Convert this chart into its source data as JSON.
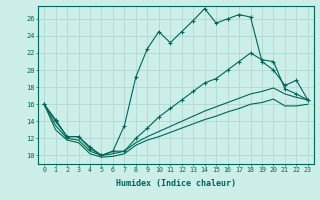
{
  "xlabel": "Humidex (Indice chaleur)",
  "xlim": [
    -0.5,
    23.5
  ],
  "ylim": [
    9.0,
    27.5
  ],
  "yticks": [
    10,
    12,
    14,
    16,
    18,
    20,
    22,
    24,
    26
  ],
  "xticks": [
    0,
    1,
    2,
    3,
    4,
    5,
    6,
    7,
    8,
    9,
    10,
    11,
    12,
    13,
    14,
    15,
    16,
    17,
    18,
    19,
    20,
    21,
    22,
    23
  ],
  "bg_color": "#cceee8",
  "grid_color": "#aad4ce",
  "line_color": "#006655",
  "series_main": [
    16.0,
    14.2,
    12.2,
    12.2,
    11.0,
    10.0,
    10.5,
    13.5,
    19.2,
    22.5,
    24.5,
    23.2,
    24.5,
    25.8,
    27.2,
    25.5,
    26.0,
    26.5,
    26.2,
    21.0,
    20.0,
    18.2,
    18.8,
    16.5
  ],
  "series_line2": [
    16.0,
    14.0,
    12.2,
    12.2,
    10.8,
    10.0,
    10.5,
    10.5,
    12.0,
    13.2,
    14.5,
    15.5,
    16.5,
    17.5,
    18.5,
    19.0,
    20.0,
    21.0,
    22.0,
    21.2,
    21.0,
    17.8,
    17.2,
    16.5
  ],
  "series_line3": [
    16.0,
    13.5,
    12.0,
    11.8,
    10.5,
    10.0,
    10.2,
    10.5,
    11.5,
    12.2,
    12.8,
    13.4,
    14.0,
    14.6,
    15.2,
    15.7,
    16.2,
    16.7,
    17.2,
    17.5,
    17.9,
    17.2,
    16.8,
    16.5
  ],
  "series_line4": [
    16.0,
    13.0,
    11.8,
    11.5,
    10.2,
    9.8,
    9.9,
    10.2,
    11.2,
    11.8,
    12.2,
    12.7,
    13.2,
    13.7,
    14.2,
    14.6,
    15.1,
    15.5,
    16.0,
    16.2,
    16.6,
    15.8,
    15.8,
    16.0
  ]
}
